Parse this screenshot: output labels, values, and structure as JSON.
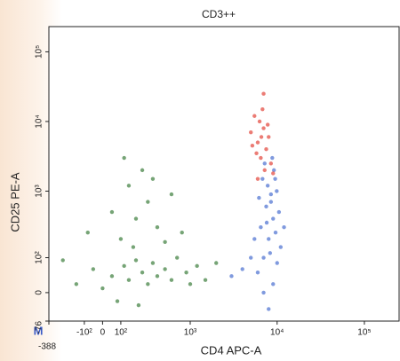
{
  "chart_data": {
    "type": "scatter",
    "title": "CD3++",
    "x_label": "CD4 APC-A",
    "y_label": "CD25 PE-A",
    "corner_label": "M",
    "x_scale": "biexponential",
    "y_scale": "biexponential",
    "xlim": [
      -388,
      250000
    ],
    "ylim": [
      -76,
      230000
    ],
    "xticks": [
      -388,
      {
        "value": -100,
        "label": "-10²"
      },
      0,
      {
        "value": 100,
        "label": "10²"
      },
      {
        "value": 1000,
        "label": "10³"
      },
      {
        "value": 10000,
        "label": "10⁴"
      },
      {
        "value": 100000,
        "label": "10⁵"
      }
    ],
    "yticks": [
      -76,
      0,
      {
        "value": 100,
        "label": "10²"
      },
      {
        "value": 1000,
        "label": "10³"
      },
      {
        "value": 10000,
        "label": "10⁴"
      },
      {
        "value": 100000,
        "label": "10⁵"
      }
    ],
    "series": [
      {
        "color": "#3c7d3c",
        "x": [
          -150,
          -50,
          0,
          50,
          80,
          120,
          150,
          200,
          250,
          300,
          350,
          400,
          500,
          600,
          700,
          900,
          1200,
          1500,
          100,
          200,
          300,
          150,
          250,
          400,
          50,
          -80,
          600,
          800,
          180,
          220,
          1000,
          2000,
          120,
          350,
          500,
          -250
        ],
        "y": [
          20,
          60,
          10,
          40,
          -20,
          70,
          30,
          90,
          50,
          20,
          80,
          40,
          60,
          30,
          100,
          50,
          70,
          30,
          200,
          400,
          700,
          1200,
          2000,
          300,
          500,
          250,
          900,
          250,
          150,
          -30,
          20,
          80,
          3000,
          1500,
          180,
          90
        ]
      },
      {
        "color": "#4a6fd0",
        "x": [
          6000,
          7000,
          8000,
          9000,
          7500,
          8500,
          9500,
          6500,
          10000,
          11000,
          8000,
          7000,
          9000,
          8500,
          7800,
          9200,
          6800,
          10500,
          5000,
          4000,
          3000,
          12000,
          8800,
          7200,
          9600,
          6200,
          8300,
          7600,
          9900,
          5500
        ],
        "y": [
          50,
          100,
          200,
          400,
          600,
          900,
          1500,
          300,
          80,
          150,
          -40,
          0,
          20,
          700,
          1200,
          2000,
          1500,
          500,
          100,
          60,
          40,
          300,
          3000,
          2500,
          250,
          800,
          120,
          350,
          1000,
          200
        ]
      },
      {
        "color": "#e2453b",
        "x": [
          6000,
          7000,
          5500,
          6500,
          7500,
          8000,
          5000,
          6800,
          7200,
          8500,
          6300,
          5800,
          7800,
          6600,
          9000,
          5200,
          7000,
          6000
        ],
        "y": [
          5000,
          8000,
          12000,
          3000,
          4000,
          6000,
          7000,
          15000,
          2000,
          2500,
          10000,
          3500,
          9000,
          6000,
          1800,
          4500,
          25000,
          1500
        ]
      }
    ]
  }
}
